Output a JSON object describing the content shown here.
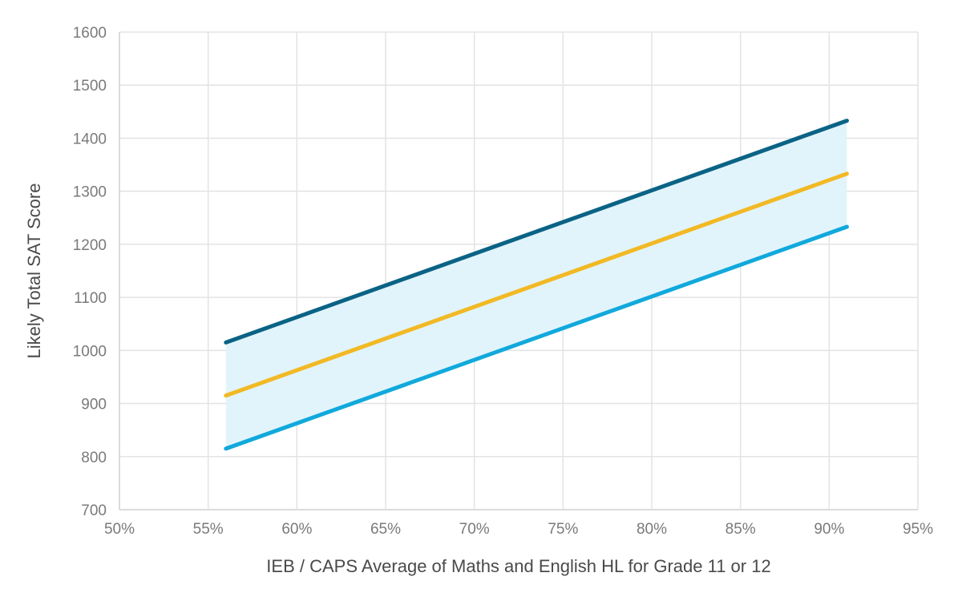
{
  "chart_data": {
    "type": "line",
    "title": "",
    "xlabel": "IEB / CAPS Average of Maths and English HL for Grade 11 or 12",
    "ylabel": "Likely Total SAT Score",
    "x_unit": "%",
    "xlim": [
      50,
      95
    ],
    "ylim": [
      700,
      1600
    ],
    "x_ticks": [
      50,
      55,
      60,
      65,
      70,
      75,
      80,
      85,
      90,
      95
    ],
    "x_tick_labels": [
      "50%",
      "55%",
      "60%",
      "65%",
      "70%",
      "75%",
      "80%",
      "85%",
      "90%",
      "95%"
    ],
    "y_ticks": [
      700,
      800,
      900,
      1000,
      1100,
      1200,
      1300,
      1400,
      1500,
      1600
    ],
    "y_tick_labels": [
      "700",
      "800",
      "900",
      "1000",
      "1100",
      "1200",
      "1300",
      "1400",
      "1500",
      "1600"
    ],
    "grid": true,
    "legend": "none",
    "band": {
      "between": [
        "upper",
        "lower"
      ],
      "color": "#e2f4fb"
    },
    "series": [
      {
        "key": "upper",
        "color": "#0a6385",
        "x": [
          56,
          91
        ],
        "y": [
          1015,
          1433
        ]
      },
      {
        "key": "middle",
        "color": "#f2b925",
        "x": [
          56,
          91
        ],
        "y": [
          915,
          1333
        ]
      },
      {
        "key": "lower",
        "color": "#11a9dc",
        "x": [
          56,
          91
        ],
        "y": [
          815,
          1233
        ]
      }
    ]
  }
}
